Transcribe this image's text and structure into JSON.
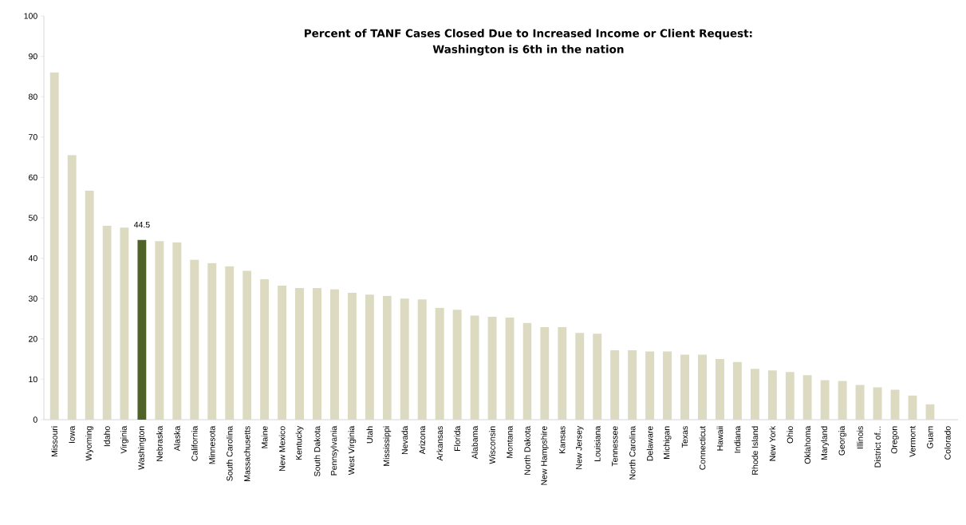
{
  "chart_data": {
    "type": "bar",
    "title": "Percent of TANF Cases Closed Due to Increased Income or Client Request:",
    "subtitle": "Washington is 6th in the nation",
    "categories": [
      "Missouri",
      "Iowa",
      "Wyoming",
      "Idaho",
      "Virginia",
      "Washington",
      "Nebraska",
      "Alaska",
      "California",
      "Minnesota",
      "South Carolina",
      "Massachusetts",
      "Maine",
      "New Mexico",
      "Kentucky",
      "South Dakota",
      "Pennsylvania",
      "West Virginia",
      "Utah",
      "Mississippi",
      "Nevada",
      "Arizona",
      "Arkansas",
      "Florida",
      "Alabama",
      "Wisconsin",
      "Montana",
      "North Dakota",
      "New Hampshire",
      "Kansas",
      "New Jersey",
      "Louisiana",
      "Tennessee",
      "North Carolina",
      "Delaware",
      "Michigan",
      "Texas",
      "Connecticut",
      "Hawaii",
      "Indiana",
      "Rhode Island",
      "New York",
      "Ohio",
      "Oklahoma",
      "Maryland",
      "Georgia",
      "Illinois",
      "District of...",
      "Oregon",
      "Vermont",
      "Guam",
      "Colorado"
    ],
    "values": [
      86,
      65.5,
      56.7,
      48,
      47.6,
      44.5,
      44.2,
      43.9,
      39.6,
      38.8,
      38,
      36.9,
      34.8,
      33.2,
      32.6,
      32.6,
      32.3,
      31.4,
      31,
      30.7,
      30,
      29.8,
      27.7,
      27.2,
      25.8,
      25.5,
      25.3,
      24,
      22.9,
      22.9,
      21.5,
      21.3,
      17.2,
      17.2,
      16.9,
      16.9,
      16.1,
      16.1,
      15,
      14.3,
      12.6,
      12.2,
      11.8,
      11,
      9.8,
      9.6,
      8.6,
      8,
      7.4,
      6,
      3.8,
      0
    ],
    "colors": [
      "#dddac2",
      "#dddac2",
      "#dddac2",
      "#dddac2",
      "#dddac2",
      "#4f6228",
      "#dddac2",
      "#dddac2",
      "#dddac2",
      "#dddac2",
      "#dddac2",
      "#dddac2",
      "#dddac2",
      "#dddac2",
      "#dddac2",
      "#dddac2",
      "#dddac2",
      "#dddac2",
      "#dddac2",
      "#dddac2",
      "#dddac2",
      "#dddac2",
      "#dddac2",
      "#dddac2",
      "#dddac2",
      "#dddac2",
      "#dddac2",
      "#dddac2",
      "#dddac2",
      "#dddac2",
      "#dddac2",
      "#dddac2",
      "#dddac2",
      "#dddac2",
      "#dddac2",
      "#dddac2",
      "#dddac2",
      "#dddac2",
      "#dddac2",
      "#dddac2",
      "#dddac2",
      "#dddac2",
      "#dddac2",
      "#dddac2",
      "#dddac2",
      "#dddac2",
      "#dddac2",
      "#dddac2",
      "#dddac2",
      "#dddac2",
      "#dddac2",
      "#dddac2"
    ],
    "value_labels": [
      null,
      null,
      null,
      null,
      null,
      "44.5",
      null,
      null,
      null,
      null,
      null,
      null,
      null,
      null,
      null,
      null,
      null,
      null,
      null,
      null,
      null,
      null,
      null,
      null,
      null,
      null,
      null,
      null,
      null,
      null,
      null,
      null,
      null,
      null,
      null,
      null,
      null,
      null,
      null,
      null,
      null,
      null,
      null,
      null,
      null,
      null,
      null,
      null,
      null,
      null,
      null,
      null
    ],
    "ylim": [
      0,
      100
    ],
    "yticks": [
      0,
      10,
      20,
      30,
      40,
      50,
      60,
      70,
      80,
      90,
      100
    ]
  }
}
